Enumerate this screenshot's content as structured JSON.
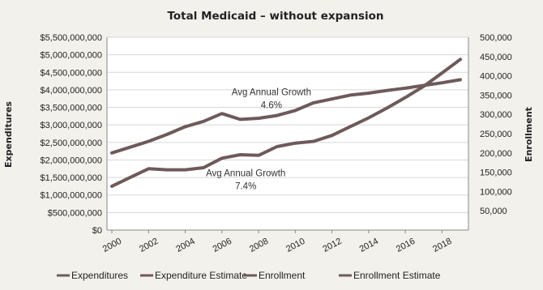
{
  "chart_data": {
    "type": "line",
    "title": "Total Medicaid – without expansion",
    "ylabel": "Expenditures",
    "y2label": "Enrollment",
    "x": [
      2000,
      2001,
      2002,
      2003,
      2004,
      2005,
      2006,
      2007,
      2008,
      2009,
      2010,
      2011,
      2012,
      2013,
      2014,
      2015,
      2016,
      2017,
      2018,
      2019
    ],
    "x_ticks": [
      "2000",
      "2002",
      "2004",
      "2006",
      "2008",
      "2010",
      "2012",
      "2014",
      "2016",
      "2018"
    ],
    "ylim": [
      0,
      5500000000
    ],
    "y_ticks": [
      "$0",
      "$500,000,000",
      "$1,000,000,000",
      "$1,500,000,000",
      "$2,000,000,000",
      "$2,500,000,000",
      "$3,000,000,000",
      "$3,500,000,000",
      "$4,000,000,000",
      "$4,500,000,000",
      "$5,000,000,000",
      "$5,500,000,000"
    ],
    "y2lim": [
      0,
      500000
    ],
    "y2_ticks": [
      "",
      "50,000",
      "100,000",
      "150,000",
      "200,000",
      "250,000",
      "300,000",
      "350,000",
      "400,000",
      "450,000",
      "500,000"
    ],
    "grid": true,
    "series": [
      {
        "name": "Expenditures",
        "axis": "left",
        "x": [
          2000,
          2001,
          2002,
          2003,
          2004,
          2005,
          2006,
          2007,
          2008,
          2009,
          2010,
          2011,
          2012
        ],
        "values": [
          1250000000,
          1500000000,
          1750000000,
          1720000000,
          1720000000,
          1780000000,
          2050000000,
          2150000000,
          2130000000,
          2380000000,
          2480000000,
          2530000000,
          2700000000
        ]
      },
      {
        "name": "Expenditure Estimate",
        "axis": "left",
        "x": [
          2012,
          2013,
          2014,
          2015,
          2016,
          2017,
          2018,
          2019
        ],
        "values": [
          2700000000,
          2950000000,
          3200000000,
          3480000000,
          3780000000,
          4100000000,
          4480000000,
          4870000000
        ]
      },
      {
        "name": "Enrollment",
        "axis": "right",
        "x": [
          2000,
          2001,
          2002,
          2003,
          2004,
          2005,
          2006,
          2007,
          2008,
          2009,
          2010,
          2011,
          2012
        ],
        "values": [
          200000,
          215000,
          230000,
          248000,
          268000,
          282000,
          302000,
          287000,
          290000,
          297000,
          310000,
          330000,
          340000
        ]
      },
      {
        "name": "Enrollment Estimate",
        "axis": "right",
        "x": [
          2012,
          2013,
          2014,
          2015,
          2016,
          2017,
          2018,
          2019
        ],
        "values": [
          340000,
          350000,
          355000,
          362000,
          368000,
          375000,
          382000,
          390000
        ]
      }
    ],
    "annotations": [
      {
        "lines": [
          "Avg  Annual Growth",
          "4.6%"
        ],
        "x": 2008.7,
        "y2": 350000
      },
      {
        "lines": [
          "Avg  Annual Growth",
          "7.4%"
        ],
        "x": 2007.3,
        "y2": 140000
      }
    ],
    "legend_position": "bottom"
  },
  "colors": {
    "background": "#f2f1ec",
    "plot_background": "#ffffff",
    "series_line": "#6e5a5a",
    "axis": "#888888",
    "grid": "#d8d8d8"
  }
}
